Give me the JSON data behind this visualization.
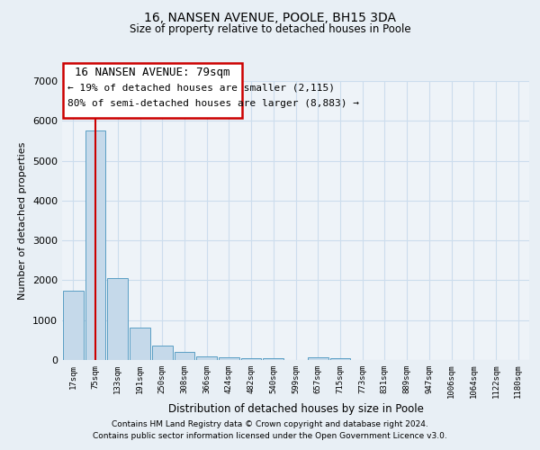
{
  "title": "16, NANSEN AVENUE, POOLE, BH15 3DA",
  "subtitle": "Size of property relative to detached houses in Poole",
  "bar_labels": [
    "17sqm",
    "75sqm",
    "133sqm",
    "191sqm",
    "250sqm",
    "308sqm",
    "366sqm",
    "424sqm",
    "482sqm",
    "540sqm",
    "599sqm",
    "657sqm",
    "715sqm",
    "773sqm",
    "831sqm",
    "889sqm",
    "947sqm",
    "1006sqm",
    "1064sqm",
    "1122sqm",
    "1180sqm"
  ],
  "bar_heights": [
    1750,
    5750,
    2050,
    820,
    370,
    200,
    100,
    65,
    40,
    55,
    10,
    60,
    40,
    5,
    5,
    5,
    5,
    5,
    5,
    5,
    5
  ],
  "bar_color": "#c5d9ea",
  "bar_edgecolor": "#5a9ec4",
  "vline_x": 1.0,
  "vline_color": "#cc0000",
  "ylim": [
    0,
    7000
  ],
  "yticks": [
    0,
    1000,
    2000,
    3000,
    4000,
    5000,
    6000,
    7000
  ],
  "ylabel": "Number of detached properties",
  "xlabel": "Distribution of detached houses by size in Poole",
  "annotation_title": "16 NANSEN AVENUE: 79sqm",
  "annotation_line1": "← 19% of detached houses are smaller (2,115)",
  "annotation_line2": "80% of semi-detached houses are larger (8,883) →",
  "annotation_box_edgecolor": "#cc0000",
  "footer_line1": "Contains HM Land Registry data © Crown copyright and database right 2024.",
  "footer_line2": "Contains public sector information licensed under the Open Government Licence v3.0.",
  "grid_color": "#ccdded",
  "bg_color": "#e8eff5",
  "plot_bg_color": "#eef3f8"
}
